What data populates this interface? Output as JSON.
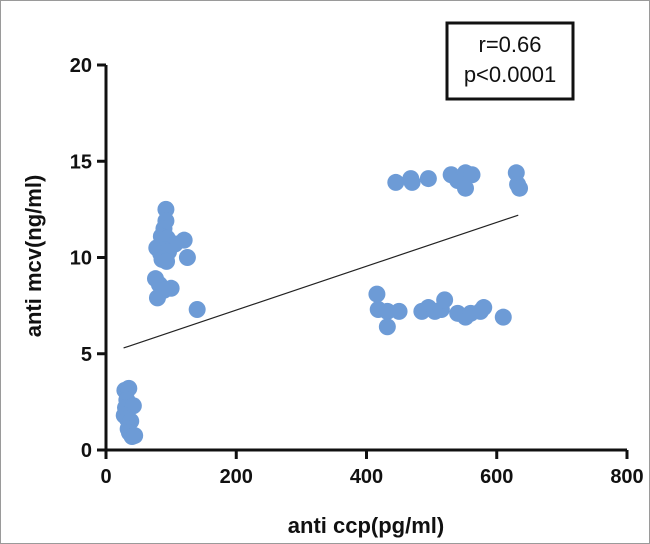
{
  "chart_data": {
    "type": "scatter",
    "title": "",
    "xlabel": "anti ccp(pg/ml)",
    "ylabel": "anti mcv(ng/ml)",
    "xlim": [
      0,
      800
    ],
    "ylim": [
      0,
      20
    ],
    "xticks": [
      0,
      200,
      400,
      600,
      800
    ],
    "yticks": [
      0,
      5,
      10,
      15,
      20
    ],
    "grid": false,
    "legend": "none",
    "annotation": {
      "line1": "r=0.66",
      "line2": "p<0.0001",
      "placement": "top-right"
    },
    "point_color": "#6d9bd6",
    "line_color": "#222222",
    "regression_line": {
      "x": [
        27,
        633
      ],
      "y": [
        5.3,
        12.2
      ]
    },
    "points": [
      {
        "x": 29,
        "y": 3.1
      },
      {
        "x": 35,
        "y": 3.2
      },
      {
        "x": 32,
        "y": 2.6
      },
      {
        "x": 30,
        "y": 2.2
      },
      {
        "x": 42,
        "y": 2.3
      },
      {
        "x": 28,
        "y": 1.8
      },
      {
        "x": 33,
        "y": 1.6
      },
      {
        "x": 38,
        "y": 1.5
      },
      {
        "x": 34,
        "y": 1.1
      },
      {
        "x": 36,
        "y": 0.9
      },
      {
        "x": 40,
        "y": 0.7
      },
      {
        "x": 44,
        "y": 0.75
      },
      {
        "x": 92,
        "y": 12.5
      },
      {
        "x": 92,
        "y": 11.9
      },
      {
        "x": 89,
        "y": 11.5
      },
      {
        "x": 85,
        "y": 11.1
      },
      {
        "x": 94,
        "y": 11.0
      },
      {
        "x": 120,
        "y": 10.9
      },
      {
        "x": 78,
        "y": 10.5
      },
      {
        "x": 100,
        "y": 10.6
      },
      {
        "x": 106,
        "y": 10.7
      },
      {
        "x": 90,
        "y": 10.4
      },
      {
        "x": 84,
        "y": 10.2
      },
      {
        "x": 96,
        "y": 10.3
      },
      {
        "x": 86,
        "y": 9.9
      },
      {
        "x": 93,
        "y": 9.8
      },
      {
        "x": 125,
        "y": 10.0
      },
      {
        "x": 76,
        "y": 8.9
      },
      {
        "x": 82,
        "y": 8.6
      },
      {
        "x": 100,
        "y": 8.4
      },
      {
        "x": 89,
        "y": 8.3
      },
      {
        "x": 79,
        "y": 7.9
      },
      {
        "x": 140,
        "y": 7.3
      },
      {
        "x": 416,
        "y": 8.1
      },
      {
        "x": 418,
        "y": 7.3
      },
      {
        "x": 432,
        "y": 7.2
      },
      {
        "x": 450,
        "y": 7.2
      },
      {
        "x": 432,
        "y": 6.4
      },
      {
        "x": 485,
        "y": 7.2
      },
      {
        "x": 495,
        "y": 7.4
      },
      {
        "x": 505,
        "y": 7.2
      },
      {
        "x": 515,
        "y": 7.3
      },
      {
        "x": 520,
        "y": 7.8
      },
      {
        "x": 540,
        "y": 7.1
      },
      {
        "x": 552,
        "y": 6.9
      },
      {
        "x": 560,
        "y": 7.1
      },
      {
        "x": 575,
        "y": 7.2
      },
      {
        "x": 580,
        "y": 7.4
      },
      {
        "x": 610,
        "y": 6.9
      },
      {
        "x": 445,
        "y": 13.9
      },
      {
        "x": 468,
        "y": 14.1
      },
      {
        "x": 470,
        "y": 13.9
      },
      {
        "x": 495,
        "y": 14.1
      },
      {
        "x": 530,
        "y": 14.3
      },
      {
        "x": 540,
        "y": 14.0
      },
      {
        "x": 552,
        "y": 14.4
      },
      {
        "x": 552,
        "y": 13.6
      },
      {
        "x": 562,
        "y": 14.3
      },
      {
        "x": 630,
        "y": 14.4
      },
      {
        "x": 632,
        "y": 13.8
      },
      {
        "x": 635,
        "y": 13.6
      }
    ]
  }
}
